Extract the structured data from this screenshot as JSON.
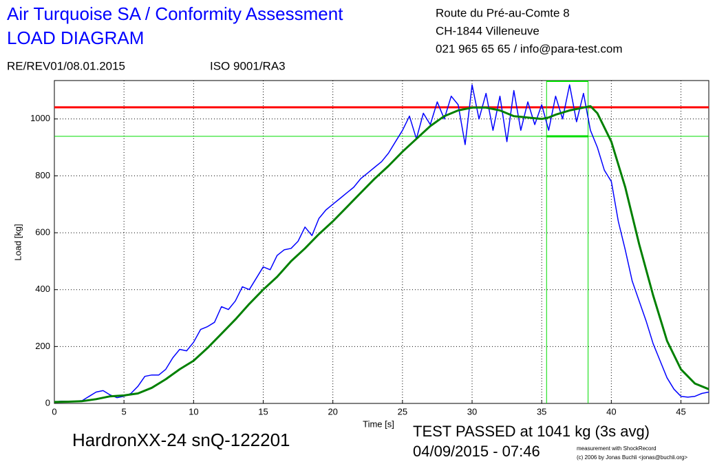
{
  "header": {
    "title": "Air Turquoise SA / Conformity Assessment",
    "subtitle": "LOAD DIAGRAM",
    "revision": "RE/REV01/08.01.2015",
    "iso": "ISO 9001/RA3",
    "address": [
      "Route du Pré-au-Comte 8",
      "CH-1844 Villeneuve",
      "021 965 65 65 / info@para-test.com"
    ]
  },
  "chart_data": {
    "type": "line",
    "x_label": "Time [s]",
    "y_label": "Load [kg]",
    "xlim": [
      0,
      47
    ],
    "ylim": [
      0,
      1135
    ],
    "xticks": [
      0,
      5,
      10,
      15,
      20,
      25,
      30,
      35,
      40,
      45
    ],
    "yticks": [
      0,
      200,
      400,
      600,
      800,
      1000
    ],
    "grid": true,
    "series": [
      {
        "color": "#0000ff",
        "x": [
          0,
          0.5,
          1,
          1.5,
          2,
          2.5,
          3,
          3.5,
          4,
          4.5,
          5,
          5.5,
          6,
          6.5,
          7,
          7.5,
          8,
          8.5,
          9,
          9.5,
          10,
          10.5,
          11,
          11.5,
          12,
          12.5,
          13,
          13.5,
          14,
          14.5,
          15,
          15.5,
          16,
          16.5,
          17,
          17.5,
          18,
          18.5,
          19,
          19.5,
          20,
          20.5,
          21,
          21.5,
          22,
          22.5,
          23,
          23.5,
          24,
          24.5,
          25,
          25.5,
          26,
          26.5,
          27,
          27.5,
          28,
          28.5,
          29,
          29.5,
          30,
          30.5,
          31,
          31.5,
          32,
          32.5,
          33,
          33.5,
          34,
          34.5,
          35,
          35.5,
          36,
          36.5,
          37,
          37.5,
          38,
          38.5,
          39,
          39.5,
          40,
          40.5,
          41,
          41.5,
          42,
          42.5,
          43,
          43.5,
          44,
          44.5,
          45,
          45.5,
          46,
          46.5,
          47
        ],
        "values": [
          5,
          8,
          8,
          8,
          10,
          25,
          40,
          45,
          30,
          20,
          25,
          35,
          60,
          95,
          100,
          100,
          120,
          160,
          190,
          185,
          215,
          260,
          270,
          285,
          340,
          330,
          360,
          410,
          400,
          440,
          480,
          470,
          520,
          540,
          545,
          570,
          620,
          590,
          650,
          680,
          700,
          720,
          740,
          760,
          790,
          810,
          830,
          850,
          880,
          920,
          960,
          1010,
          930,
          1020,
          980,
          1060,
          1000,
          1080,
          1050,
          910,
          1120,
          1000,
          1090,
          960,
          1080,
          920,
          1100,
          960,
          1060,
          980,
          1050,
          960,
          1080,
          1000,
          1120,
          990,
          1090,
          960,
          900,
          820,
          780,
          640,
          540,
          430,
          360,
          290,
          210,
          150,
          90,
          50,
          25,
          22,
          25,
          35,
          40
        ]
      },
      {
        "color": "#008000",
        "x": [
          0,
          1,
          2,
          3,
          4,
          5,
          6,
          7,
          8,
          9,
          10,
          11,
          12,
          13,
          14,
          15,
          16,
          17,
          18,
          19,
          20,
          21,
          22,
          23,
          24,
          25,
          26,
          27,
          28,
          29,
          30,
          31,
          32,
          33,
          34,
          35,
          35.5,
          36,
          37,
          38,
          38.5,
          39,
          40,
          41,
          42,
          43,
          44,
          45,
          46,
          47
        ],
        "values": [
          5,
          6,
          8,
          15,
          25,
          28,
          35,
          55,
          85,
          120,
          150,
          195,
          245,
          295,
          350,
          400,
          445,
          500,
          545,
          595,
          640,
          690,
          740,
          790,
          835,
          885,
          930,
          975,
          1010,
          1030,
          1040,
          1040,
          1030,
          1010,
          1005,
          1000,
          1005,
          1015,
          1030,
          1040,
          1045,
          1020,
          920,
          760,
          560,
          380,
          220,
          120,
          70,
          50
        ]
      }
    ],
    "reference_lines": [
      {
        "value": 1041,
        "color": "#ff0000"
      },
      {
        "value": 939,
        "color": "#00dd00"
      }
    ],
    "window_x": [
      35.35,
      38.33
    ],
    "product": "HardronXX-24 snQ-122201",
    "result": "TEST PASSED at 1041 kg (3s avg)",
    "date": "04/09/2015 - 07:46",
    "credit": "measurement with ShockRecord",
    "copyright": "(c) 2006 by Jonas Buchli <jonas@buchli.org>"
  }
}
